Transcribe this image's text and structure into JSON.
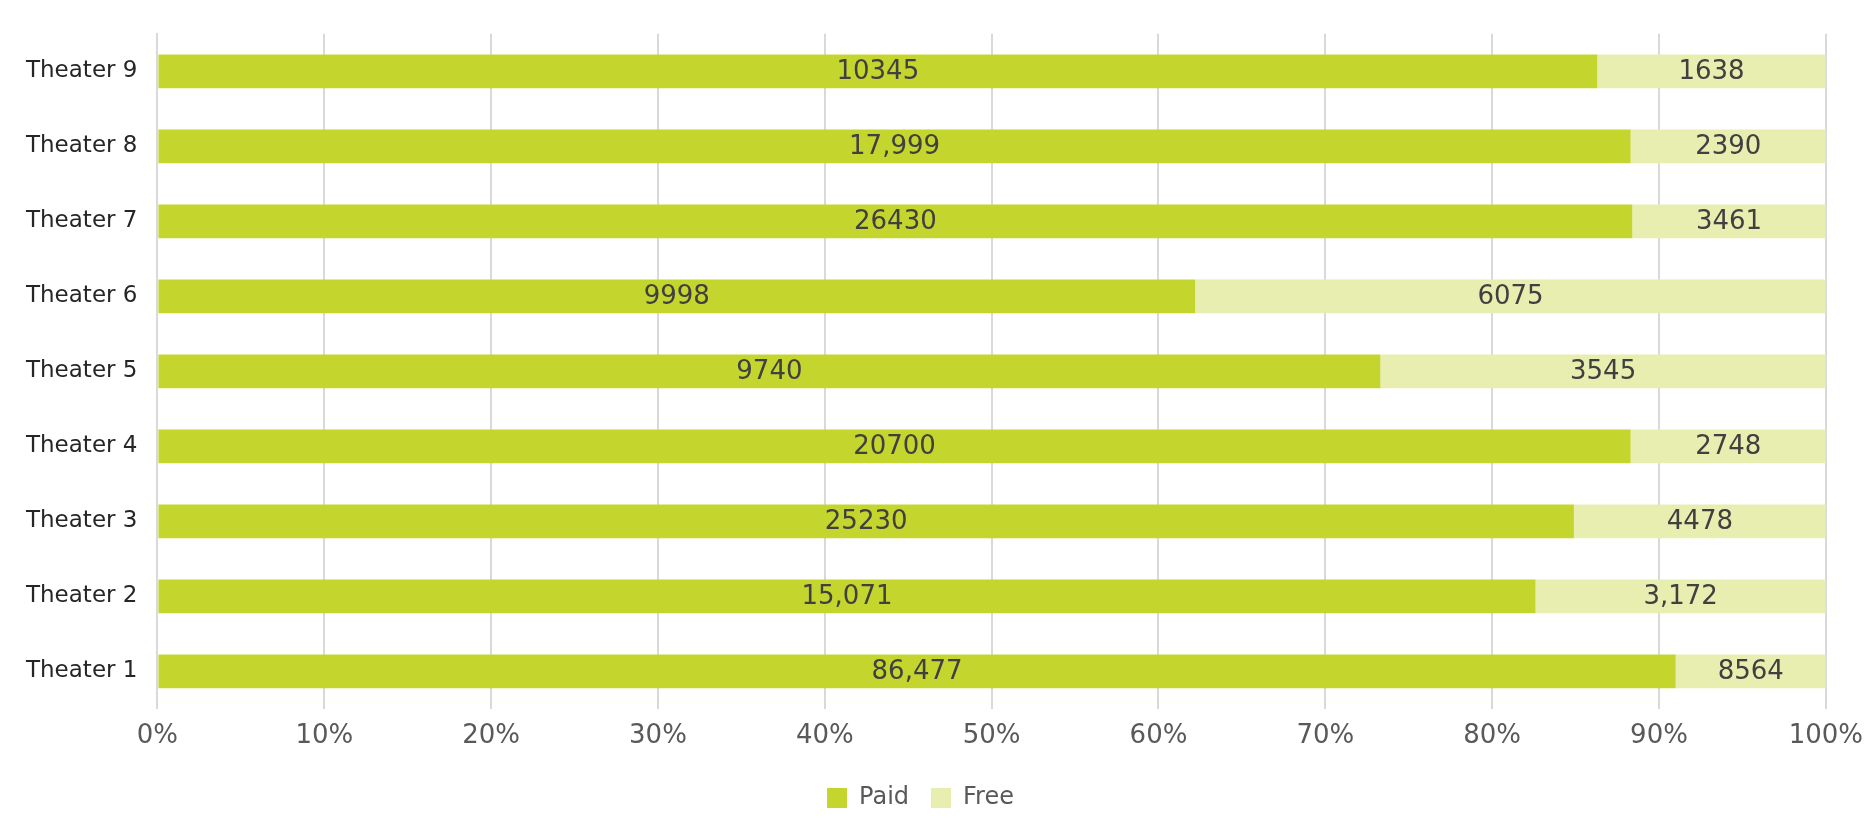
{
  "chart_data": {
    "type": "bar",
    "orientation": "horizontal",
    "stacked": true,
    "categories": [
      "Theater 9",
      "Theater 8",
      "Theater 7",
      "Theater 6",
      "Theater 5",
      "Theater 4",
      "Theater 3",
      "Theater 2",
      "Theater 1"
    ],
    "series": [
      {
        "name": "Paid",
        "color": "#c4d52e",
        "values": [
          86.3,
          88.3,
          88.4,
          62.2,
          73.3,
          88.3,
          84.9,
          82.6,
          91.0
        ]
      },
      {
        "name": "Free",
        "color": "#e8edb0",
        "values": [
          13.7,
          11.7,
          11.6,
          37.8,
          26.7,
          11.7,
          15.1,
          17.4,
          9.0
        ]
      }
    ],
    "annotations": [
      "10345",
      "17,999",
      "26430",
      "9998",
      "9740",
      "20700",
      "25230",
      "15,071",
      "86,477",
      "1638",
      "2390",
      "3461",
      "6075",
      "3545",
      "2748",
      "4478",
      "3,172",
      "8564"
    ],
    "xlim": [
      0,
      100
    ],
    "xticks": [
      {
        "value": 0,
        "label": "0%"
      },
      {
        "value": 10,
        "label": "10%"
      },
      {
        "value": 20,
        "label": "20%"
      },
      {
        "value": 30,
        "label": "30%"
      },
      {
        "value": 40,
        "label": "40%"
      },
      {
        "value": 50,
        "label": "50%"
      },
      {
        "value": 60,
        "label": "60%"
      },
      {
        "value": 70,
        "label": "70%"
      },
      {
        "value": 80,
        "label": "80%"
      },
      {
        "value": 90,
        "label": "90%"
      },
      {
        "value": 100,
        "label": "100%"
      }
    ],
    "grid": "x",
    "legend": "bottom"
  }
}
